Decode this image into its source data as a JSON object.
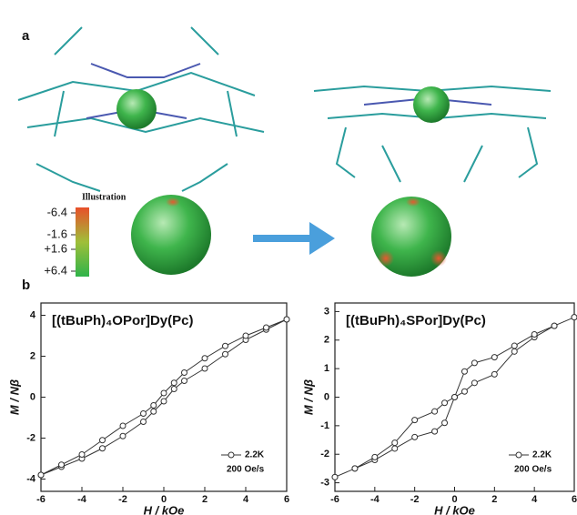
{
  "panel_labels": [
    "a",
    "b"
  ],
  "colorbar": {
    "title": "Illustration",
    "ticks": [
      -6.4,
      -1.6,
      {
        "value": 1.6,
        "label": "+1.6"
      },
      {
        "value": 6.4,
        "label": "+6.4"
      }
    ]
  },
  "chart_data": [
    {
      "type": "line",
      "title": "[(tBuPh)₄OPor]Dy(Pc)",
      "x_label": "H / kOe",
      "y_label": "M / Nβ",
      "x": [
        -6,
        -5,
        -4,
        -3,
        -2,
        -1,
        -0.5,
        0,
        0.5,
        1,
        2,
        3,
        4,
        5,
        6,
        6,
        5,
        4,
        3,
        2,
        1,
        0.5,
        0,
        -0.5,
        -1,
        -2,
        -3,
        -4,
        -5,
        -6
      ],
      "series": [
        {
          "name": "2.2K",
          "color": "#333333",
          "values": [
            -3.8,
            -3.4,
            -3.0,
            -2.5,
            -1.9,
            -1.2,
            -0.7,
            -0.2,
            0.4,
            0.8,
            1.4,
            2.1,
            2.8,
            3.3,
            3.8,
            3.8,
            3.4,
            3.0,
            2.5,
            1.9,
            1.2,
            0.7,
            0.2,
            -0.4,
            -0.8,
            -1.4,
            -2.1,
            -2.8,
            -3.3,
            -3.8
          ]
        }
      ],
      "annotation": "200 Oe/s",
      "xlim": [
        -6,
        6
      ],
      "xticks": [
        -6,
        -4,
        -2,
        0,
        2,
        4,
        6
      ],
      "ylim": [
        -4.6,
        4.6
      ],
      "yticks": [
        -4,
        -2,
        0,
        2,
        4
      ]
    },
    {
      "type": "line",
      "title": "[(tBuPh)₄SPor]Dy(Pc)",
      "x_label": "H / kOe",
      "y_label": "M / Nβ",
      "x": [
        -6,
        -5,
        -4,
        -3,
        -2,
        -1,
        -0.5,
        0,
        0.5,
        1,
        2,
        3,
        4,
        5,
        6,
        6,
        5,
        4,
        3,
        2,
        1,
        0.5,
        0,
        -0.5,
        -1,
        -2,
        -3,
        -4,
        -5,
        -6
      ],
      "series": [
        {
          "name": "2.2K",
          "color": "#333333",
          "values": [
            -2.8,
            -2.5,
            -2.2,
            -1.8,
            -1.4,
            -1.2,
            -0.9,
            0,
            0.2,
            0.5,
            0.8,
            1.6,
            2.1,
            2.5,
            2.8,
            2.8,
            2.5,
            2.2,
            1.8,
            1.4,
            1.2,
            0.9,
            0,
            -0.2,
            -0.5,
            -0.8,
            -1.6,
            -2.1,
            -2.5,
            -2.8
          ]
        }
      ],
      "annotation": "200 Oe/s",
      "xlim": [
        -6,
        6
      ],
      "xticks": [
        -6,
        -4,
        -2,
        0,
        2,
        4,
        6
      ],
      "ylim": [
        -3.3,
        3.3
      ],
      "yticks": [
        -3,
        -2,
        -1,
        0,
        1,
        2,
        3
      ]
    }
  ]
}
